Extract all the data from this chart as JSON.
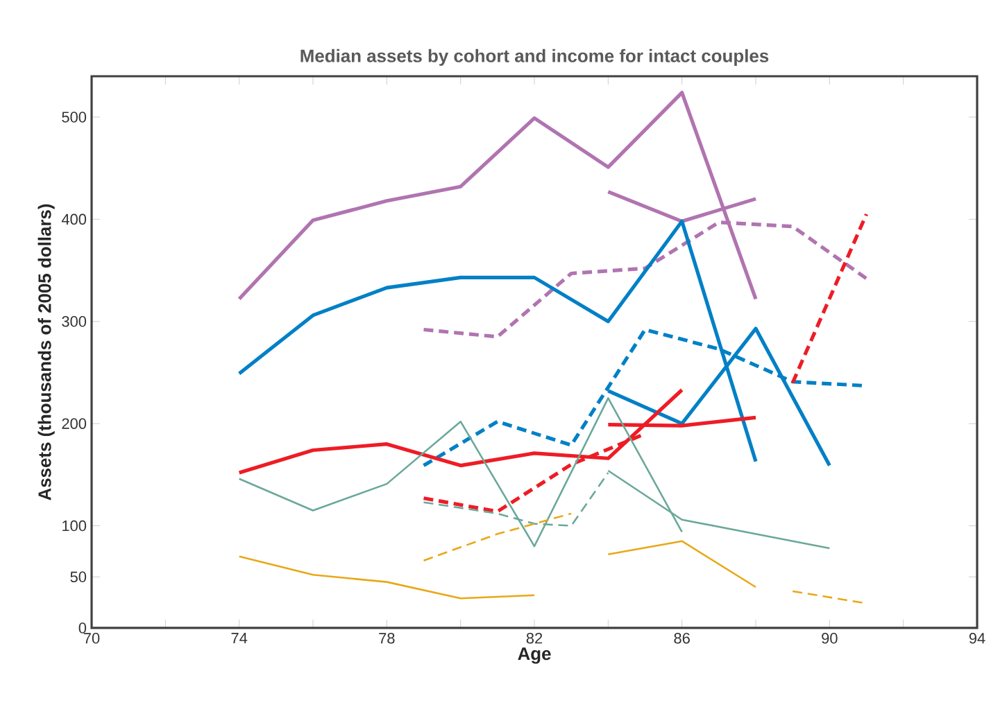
{
  "chart_data": {
    "type": "line",
    "title": "Median assets by cohort and income for intact couples",
    "xlabel": "Age",
    "ylabel": "Assets (thousands of 2005 dollars)",
    "xlim": [
      70,
      94
    ],
    "ylim": [
      0,
      540
    ],
    "xticks": [
      70,
      {
        "value": 72,
        "label": null
      },
      74,
      {
        "value": 76,
        "label": null
      },
      78,
      {
        "value": 80,
        "label": null
      },
      82,
      {
        "value": 84,
        "label": null
      },
      86,
      {
        "value": 88,
        "label": null
      },
      90,
      {
        "value": 92,
        "label": null
      },
      94
    ],
    "yticks": [
      0,
      50,
      100,
      200,
      300,
      400,
      500
    ],
    "grid": false,
    "legend": false,
    "marker": "none",
    "series": [
      {
        "color": "#b074b0",
        "line_style": "solid",
        "x": [
          74,
          76,
          78,
          80,
          82,
          84,
          86,
          88
        ],
        "values": [
          322,
          399,
          418,
          432,
          499,
          451,
          524,
          322
        ]
      },
      {
        "color": "#b074b0",
        "line_style": "solid",
        "x": [
          84,
          86,
          88
        ],
        "values": [
          427,
          398,
          420
        ]
      },
      {
        "color": "#b074b0",
        "line_style": "dashed",
        "x": [
          79,
          81,
          83,
          85,
          87,
          89,
          91
        ],
        "values": [
          292,
          285,
          347,
          352,
          397,
          393,
          342
        ]
      },
      {
        "color": "#0080c6",
        "line_style": "solid",
        "x": [
          74,
          76,
          78,
          80,
          82,
          84,
          86,
          88
        ],
        "values": [
          249,
          306,
          333,
          343,
          343,
          300,
          398,
          163
        ]
      },
      {
        "color": "#0080c6",
        "line_style": "solid",
        "x": [
          84,
          86,
          88,
          90
        ],
        "values": [
          232,
          200,
          293,
          159
        ]
      },
      {
        "color": "#0080c6",
        "line_style": "dashed",
        "x": [
          79,
          81,
          83,
          85,
          87,
          89,
          91
        ],
        "values": [
          159,
          202,
          179,
          292,
          273,
          241,
          237
        ]
      },
      {
        "color": "#ee1c25",
        "line_style": "solid",
        "x": [
          74,
          76,
          78,
          80,
          82,
          84,
          86
        ],
        "values": [
          152,
          174,
          180,
          159,
          171,
          166,
          233
        ]
      },
      {
        "color": "#ee1c25",
        "line_style": "solid",
        "x": [
          84,
          86,
          88
        ],
        "values": [
          199,
          198,
          206
        ]
      },
      {
        "color": "#ee1c25",
        "line_style": "dashed",
        "x": [
          79,
          81,
          83,
          85,
          87,
          89,
          91
        ],
        "values": [
          127,
          114,
          160,
          190,
          null,
          240,
          405
        ]
      },
      {
        "color": "#6aa89a",
        "line_style": "solid",
        "x": [
          74,
          76,
          78,
          80,
          82,
          84,
          86
        ],
        "values": [
          146,
          115,
          141,
          202,
          80,
          225,
          94
        ]
      },
      {
        "color": "#6aa89a",
        "line_style": "solid",
        "x": [
          84,
          86,
          90
        ],
        "values": [
          154,
          106,
          78
        ]
      },
      {
        "color": "#6aa89a",
        "line_style": "dashed",
        "x": [
          79,
          81,
          82,
          83,
          84
        ],
        "values": [
          123,
          112,
          102,
          100,
          152
        ]
      },
      {
        "color": "#e8a817",
        "line_style": "solid",
        "x": [
          74,
          76,
          78,
          80,
          82
        ],
        "values": [
          70,
          52,
          45,
          29,
          32
        ]
      },
      {
        "color": "#e8a817",
        "line_style": "solid",
        "x": [
          84,
          86,
          88
        ],
        "values": [
          72,
          85,
          40
        ]
      },
      {
        "color": "#e8a817",
        "line_style": "dashed",
        "x": [
          79,
          81,
          83
        ],
        "values": [
          66,
          92,
          112
        ]
      },
      {
        "color": "#e8a817",
        "line_style": "dashed",
        "x": [
          89,
          91
        ],
        "values": [
          36,
          24
        ]
      }
    ]
  }
}
